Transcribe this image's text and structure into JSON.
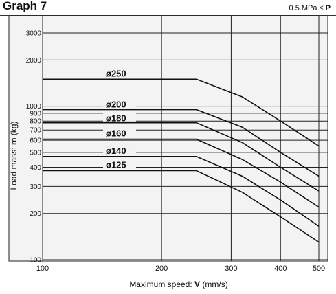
{
  "header": {
    "title": "Graph 7",
    "condition_prefix": "0.5 MPa ≤ ",
    "condition_var": "P"
  },
  "chart_data": {
    "type": "line",
    "title": "Graph 7",
    "xlabel_prefix": "Maximum speed: ",
    "xlabel_var": "V",
    "xlabel_unit": " (mm/s)",
    "ylabel_prefix": "Load mass: ",
    "ylabel_var": "m",
    "ylabel_unit": " (kg)",
    "x_scale": "log",
    "y_scale": "log",
    "xlim": [
      100,
      520
    ],
    "ylim": [
      100,
      3500
    ],
    "x_ticks": [
      100,
      200,
      300,
      400,
      500
    ],
    "y_ticks": [
      100,
      200,
      300,
      400,
      500,
      600,
      700,
      800,
      900,
      1000,
      2000,
      3000
    ],
    "grid": true,
    "colors": {
      "background": "#f3f3f3",
      "line": "#111111",
      "grid": "#222222"
    },
    "series": [
      {
        "name": "ø250",
        "x": [
          100,
          245,
          320,
          400,
          500
        ],
        "y": [
          1500,
          1500,
          1150,
          800,
          550
        ]
      },
      {
        "name": "ø200",
        "x": [
          100,
          245,
          320,
          400,
          500
        ],
        "y": [
          950,
          950,
          730,
          500,
          350
        ]
      },
      {
        "name": "ø180",
        "x": [
          100,
          245,
          320,
          400,
          500
        ],
        "y": [
          780,
          780,
          580,
          400,
          280
        ]
      },
      {
        "name": "ø160",
        "x": [
          100,
          245,
          320,
          400,
          500
        ],
        "y": [
          610,
          610,
          450,
          320,
          220
        ]
      },
      {
        "name": "ø140",
        "x": [
          100,
          245,
          320,
          400,
          500
        ],
        "y": [
          470,
          470,
          350,
          245,
          165
        ]
      },
      {
        "name": "ø125",
        "x": [
          100,
          245,
          320,
          400,
          500
        ],
        "y": [
          380,
          380,
          275,
          190,
          130
        ]
      }
    ]
  }
}
